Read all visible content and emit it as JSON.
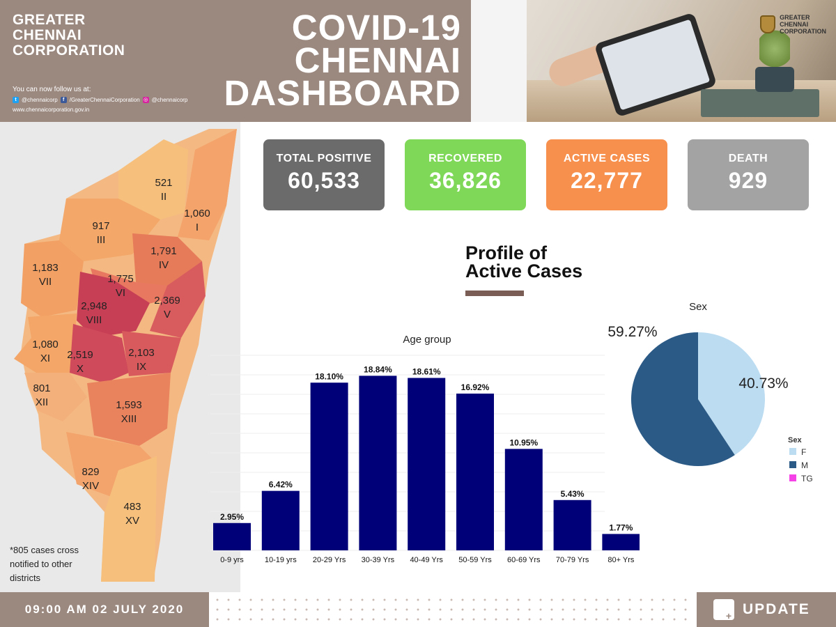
{
  "header": {
    "org_line1": "GREATER",
    "org_line2": "CHENNAI",
    "org_line3": "CORPORATION",
    "follow_text": "You can now follow us at:",
    "twitter": "@chennaicorp",
    "facebook": "/GreaterChennaiCorporation",
    "instagram": "@chennaicorp",
    "website": "www.chennaicorporation.gov.in",
    "title_line1": "COVID-19",
    "title_line2": "CHENNAI",
    "title_line3": "DASHBOARD",
    "logo_line1": "GREATER",
    "logo_line2": "CHENNAI",
    "logo_line3": "CORPORATION"
  },
  "stats": [
    {
      "label": "TOTAL POSITIVE",
      "value": "60,533",
      "color": "#6b6b6b"
    },
    {
      "label": "RECOVERED",
      "value": "36,826",
      "color": "#7fd858"
    },
    {
      "label": "ACTIVE CASES",
      "value": "22,777",
      "color": "#f78f4d"
    },
    {
      "label": "DEATH",
      "value": "929",
      "color": "#a3a3a3"
    }
  ],
  "map": {
    "zones": [
      {
        "value": "521",
        "zone": "II"
      },
      {
        "value": "1,060",
        "zone": "I"
      },
      {
        "value": "917",
        "zone": "III"
      },
      {
        "value": "1,791",
        "zone": "IV"
      },
      {
        "value": "1,183",
        "zone": "VII"
      },
      {
        "value": "1,775",
        "zone": "VI"
      },
      {
        "value": "2,948",
        "zone": "VIII"
      },
      {
        "value": "2,369",
        "zone": "V"
      },
      {
        "value": "1,080",
        "zone": "XI"
      },
      {
        "value": "2,519",
        "zone": "X"
      },
      {
        "value": "2,103",
        "zone": "IX"
      },
      {
        "value": "801",
        "zone": "XII"
      },
      {
        "value": "1,593",
        "zone": "XIII"
      },
      {
        "value": "829",
        "zone": "XIV"
      },
      {
        "value": "483",
        "zone": "XV"
      }
    ],
    "footnote_line1": "*805 cases cross",
    "footnote_line2": "notified to other",
    "footnote_line3": "districts"
  },
  "profile": {
    "title_line1": "Profile of",
    "title_line2": "Active Cases"
  },
  "chart_data": [
    {
      "type": "bar",
      "title": "Age group",
      "categories": [
        "0-9 yrs",
        "10-19 yrs",
        "20-29 Yrs",
        "30-39 Yrs",
        "40-49 Yrs",
        "50-59 Yrs",
        "60-69 Yrs",
        "70-79 Yrs",
        "80+ Yrs"
      ],
      "values": [
        2.95,
        6.42,
        18.1,
        18.84,
        18.61,
        16.92,
        10.95,
        5.43,
        1.77
      ],
      "labels": [
        "2.95%",
        "6.42%",
        "18.10%",
        "18.84%",
        "18.61%",
        "16.92%",
        "10.95%",
        "5.43%",
        "1.77%"
      ],
      "ylim": [
        0,
        20
      ],
      "bar_color": "#000078"
    },
    {
      "type": "pie",
      "title": "Sex",
      "legend_title": "Sex",
      "slices": [
        {
          "name": "F",
          "value": 40.73,
          "label": "40.73%",
          "color": "#bcdcf2"
        },
        {
          "name": "M",
          "value": 59.27,
          "label": "59.27%",
          "color": "#2b5a86"
        },
        {
          "name": "TG",
          "value": 0,
          "label": "",
          "color": "#f542e6"
        }
      ]
    }
  ],
  "footer": {
    "timestamp": "09:00 AM 02 JULY 2020",
    "update_label": "UPDATE"
  }
}
